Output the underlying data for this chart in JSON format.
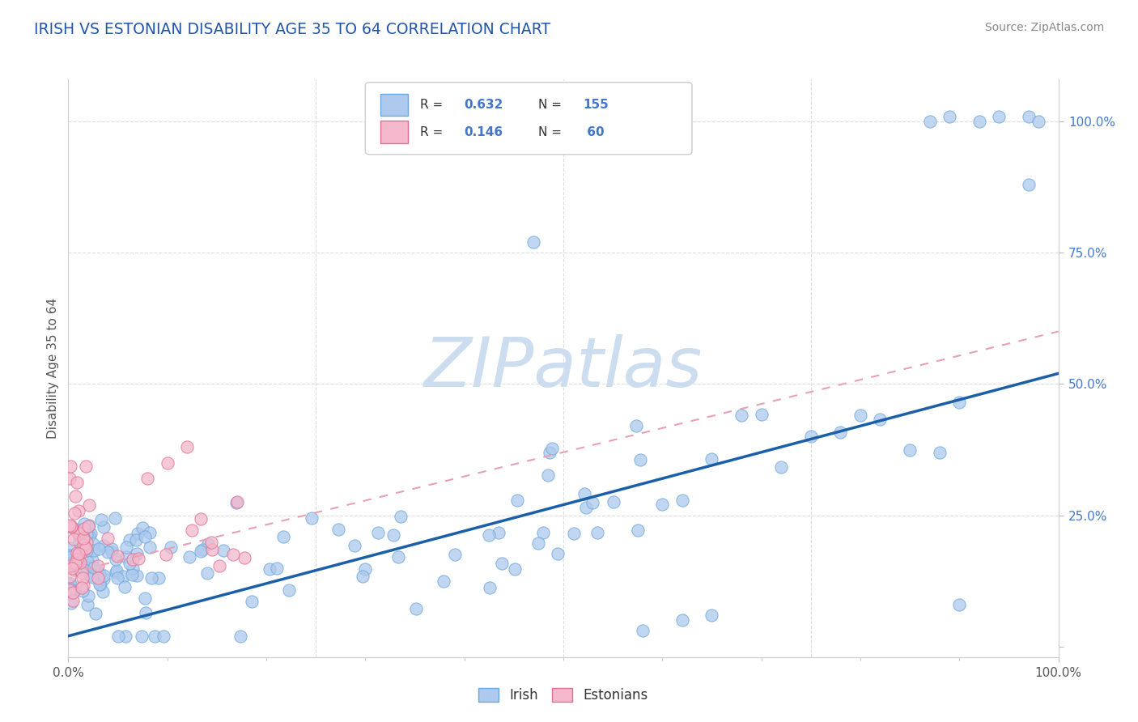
{
  "title": "IRISH VS ESTONIAN DISABILITY AGE 35 TO 64 CORRELATION CHART",
  "source": "Source: ZipAtlas.com",
  "ylabel": "Disability Age 35 to 64",
  "irish_R": 0.632,
  "irish_N": 155,
  "estonian_R": 0.146,
  "estonian_N": 60,
  "irish_color": "#adc9ed",
  "irish_edge_color": "#6fa8dc",
  "estonian_color": "#f4b8cc",
  "estonian_edge_color": "#e07090",
  "irish_line_color": "#1a5fa8",
  "estonian_line_color": "#e8a0b4",
  "background_color": "#ffffff",
  "title_color": "#2255aa",
  "grid_color": "#dddddd",
  "watermark_color": "#ccddf0",
  "legend_entry1_label": "R = 0.632   N = 155",
  "legend_entry2_label": "R = 0.146   N =  60"
}
